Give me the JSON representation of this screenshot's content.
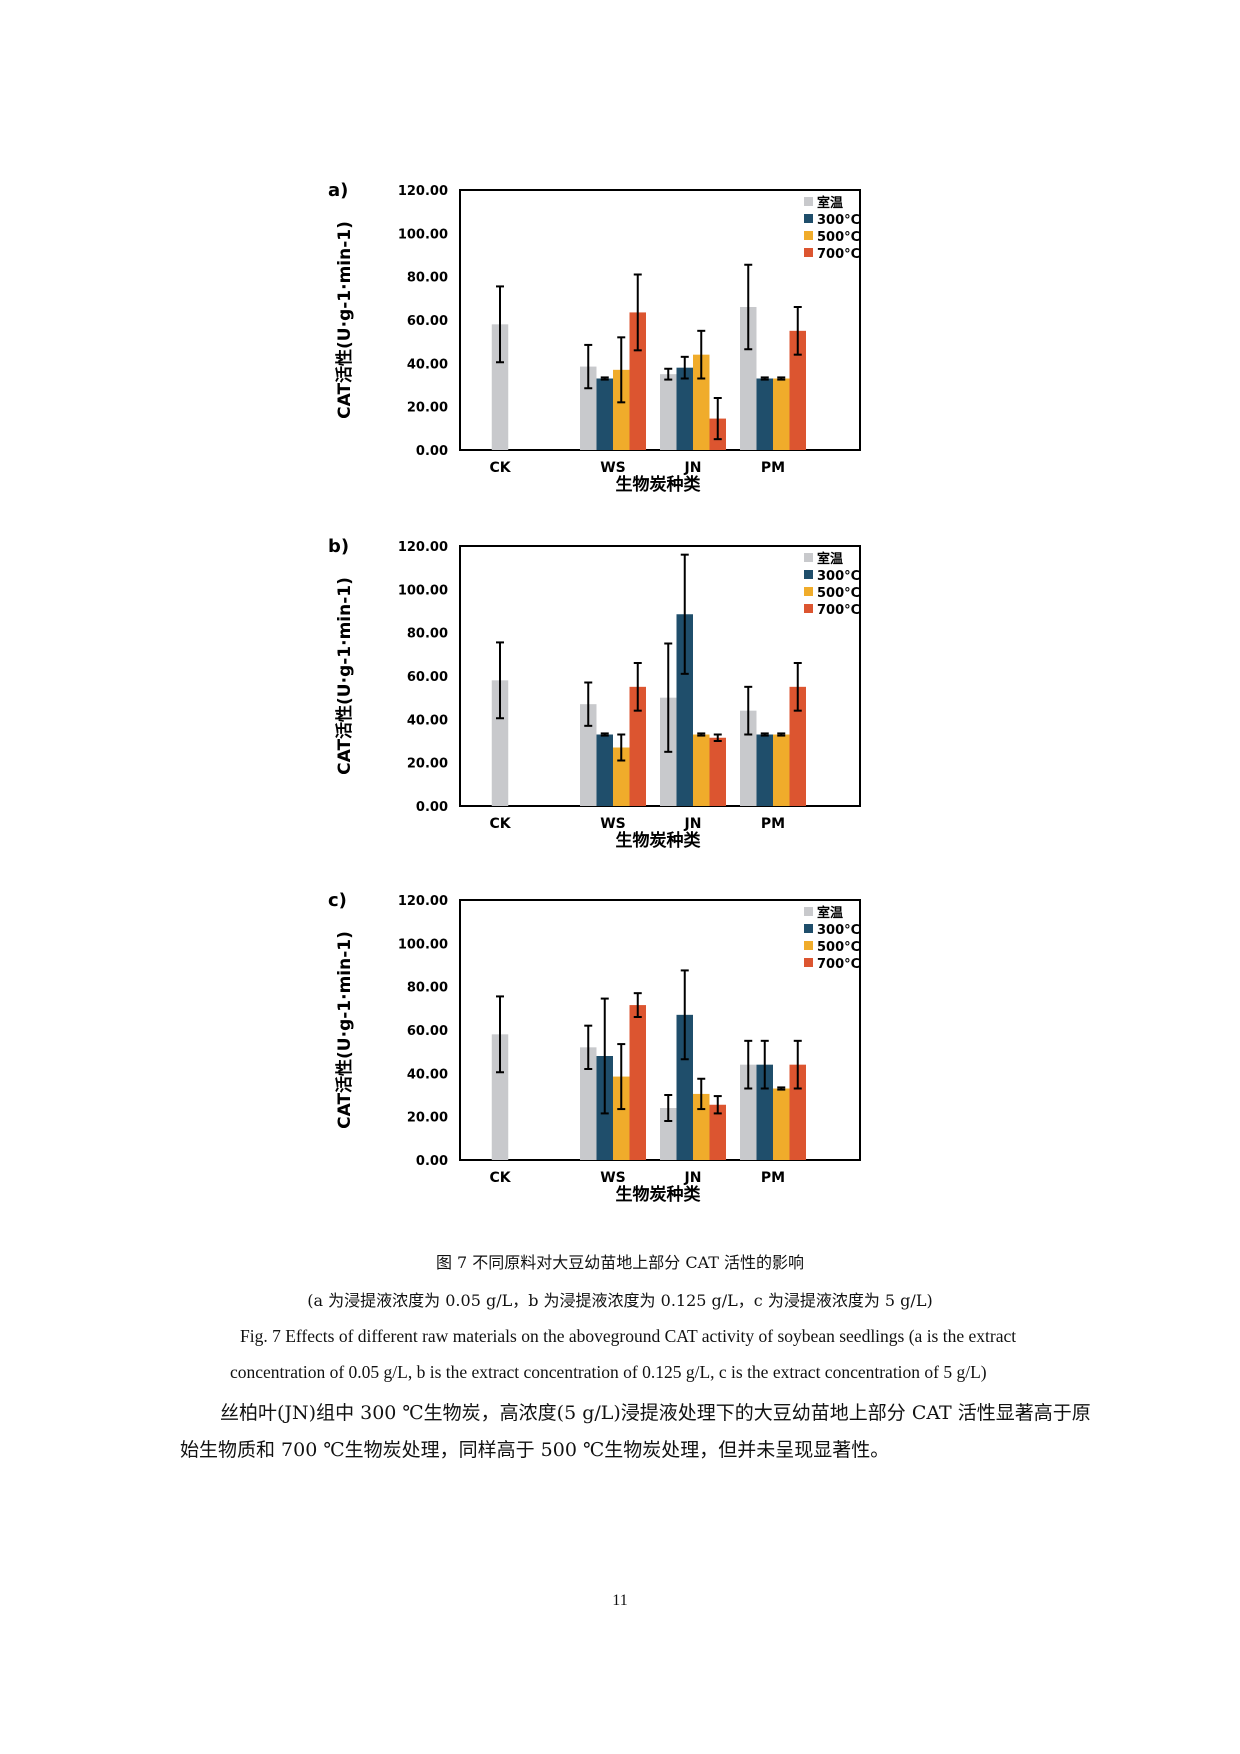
{
  "figure": {
    "legend": [
      {
        "label": "室温",
        "color": "#c8c9cc"
      },
      {
        "label": "300°C",
        "color": "#1f4e6b"
      },
      {
        "label": "500°C",
        "color": "#f0ac2b"
      },
      {
        "label": "700°C",
        "color": "#dc5530"
      }
    ],
    "ylabel": "CAT活性(U·g-1·min-1)",
    "xlabel": "生物炭种类"
  },
  "chart_data": [
    {
      "type": "bar",
      "panel": "a)",
      "categories": [
        "CK",
        "WS",
        "JN",
        "PM"
      ],
      "series": [
        {
          "name": "室温",
          "values": [
            58.0,
            38.5,
            35.0,
            66.0
          ],
          "errors": [
            17.5,
            10.0,
            2.5,
            19.5
          ]
        },
        {
          "name": "300°C",
          "values": [
            null,
            33.0,
            38.0,
            33.0
          ],
          "errors": [
            null,
            0.5,
            5.0,
            0.5
          ]
        },
        {
          "name": "500°C",
          "values": [
            null,
            37.0,
            44.0,
            33.0
          ],
          "errors": [
            null,
            15.0,
            11.0,
            0.5
          ]
        },
        {
          "name": "700°C",
          "values": [
            null,
            63.5,
            14.5,
            55.0
          ],
          "errors": [
            null,
            17.5,
            9.5,
            11.0
          ]
        }
      ],
      "yticks": [
        "0.00",
        "20.00",
        "40.00",
        "60.00",
        "80.00",
        "100.00",
        "120.00"
      ],
      "ylim": [
        0,
        120
      ],
      "xlabel": "生物炭种类",
      "ylabel": "CAT活性(U·g-1·min-1)",
      "legend_position": "top-right"
    },
    {
      "type": "bar",
      "panel": "b)",
      "categories": [
        "CK",
        "WS",
        "JN",
        "PM"
      ],
      "series": [
        {
          "name": "室温",
          "values": [
            58.0,
            47.0,
            50.0,
            44.0
          ],
          "errors": [
            17.5,
            10.0,
            25.0,
            11.0
          ]
        },
        {
          "name": "300°C",
          "values": [
            null,
            33.0,
            88.5,
            33.0
          ],
          "errors": [
            null,
            0.5,
            27.5,
            0.5
          ]
        },
        {
          "name": "500°C",
          "values": [
            null,
            27.0,
            33.0,
            33.0
          ],
          "errors": [
            null,
            6.0,
            0.5,
            0.5
          ]
        },
        {
          "name": "700°C",
          "values": [
            null,
            55.0,
            31.5,
            55.0
          ],
          "errors": [
            null,
            11.0,
            1.5,
            11.0
          ]
        }
      ],
      "yticks": [
        "0.00",
        "20.00",
        "40.00",
        "60.00",
        "80.00",
        "100.00",
        "120.00"
      ],
      "ylim": [
        0,
        120
      ],
      "xlabel": "生物炭种类",
      "ylabel": "CAT活性(U·g-1·min-1)",
      "legend_position": "top-right"
    },
    {
      "type": "bar",
      "panel": "c)",
      "categories": [
        "CK",
        "WS",
        "JN",
        "PM"
      ],
      "series": [
        {
          "name": "室温",
          "values": [
            58.0,
            52.0,
            24.0,
            44.0
          ],
          "errors": [
            17.5,
            10.0,
            6.0,
            11.0
          ]
        },
        {
          "name": "300°C",
          "values": [
            null,
            48.0,
            67.0,
            44.0
          ],
          "errors": [
            null,
            26.5,
            20.5,
            11.0
          ]
        },
        {
          "name": "500°C",
          "values": [
            null,
            38.5,
            30.5,
            33.0
          ],
          "errors": [
            null,
            15.0,
            7.0,
            0.5
          ]
        },
        {
          "name": "700°C",
          "values": [
            null,
            71.5,
            25.5,
            44.0
          ],
          "errors": [
            null,
            5.5,
            4.0,
            11.0
          ]
        }
      ],
      "yticks": [
        "0.00",
        "20.00",
        "40.00",
        "60.00",
        "80.00",
        "100.00",
        "120.00"
      ],
      "ylim": [
        0,
        120
      ],
      "xlabel": "生物炭种类",
      "ylabel": "CAT活性(U·g-1·min-1)",
      "legend_position": "top-right"
    }
  ],
  "caption": {
    "cn_title": "图 7  不同原料对大豆幼苗地上部分 CAT 活性的影响",
    "cn_note": "(a 为浸提液浓度为 0.05 g/L，b 为浸提液浓度为 0.125 g/L，c 为浸提液浓度为 5 g/L)",
    "en_line1": "Fig. 7 Effects of different raw materials on the aboveground CAT activity of soybean seedlings (a is the extract",
    "en_line2": "concentration of 0.05 g/L, b is the extract concentration of 0.125 g/L, c is the extract concentration of 5 g/L)"
  },
  "body": {
    "paragraph": "丝柏叶(JN)组中 300 ℃生物炭，高浓度(5 g/L)浸提液处理下的大豆幼苗地上部分 CAT 活性显著高于原始生物质和 700 ℃生物炭处理，同样高于 500 ℃生物炭处理，但并未呈现显著性。"
  },
  "page_number": "11"
}
